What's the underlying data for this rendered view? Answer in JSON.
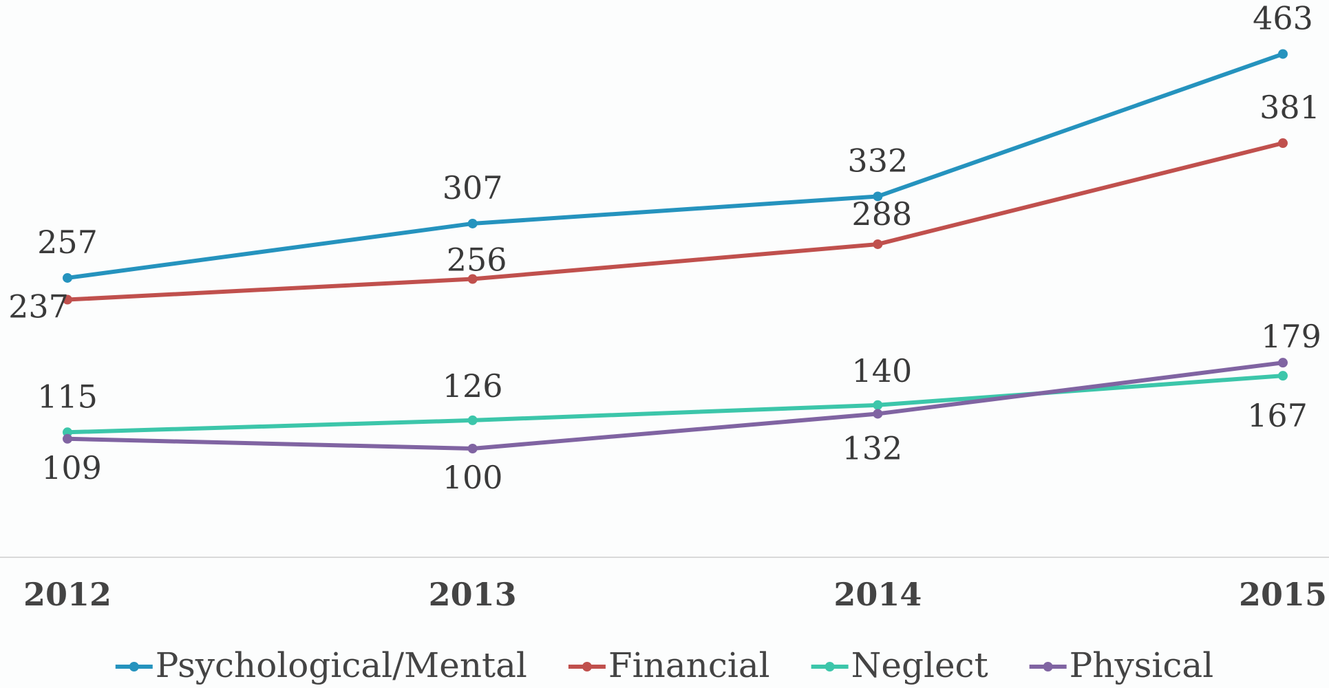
{
  "chart_data": {
    "type": "line",
    "categories": [
      "2012",
      "2013",
      "2014",
      "2015"
    ],
    "series": [
      {
        "name": "Psychological/Mental",
        "color": "#2593be",
        "values": [
          257,
          307,
          332,
          463
        ]
      },
      {
        "name": "Financial",
        "color": "#c0504d",
        "values": [
          237,
          256,
          288,
          381
        ]
      },
      {
        "name": "Neglect",
        "color": "#3cc6aa",
        "values": [
          115,
          126,
          140,
          167
        ]
      },
      {
        "name": "Physical",
        "color": "#8064a2",
        "values": [
          109,
          100,
          132,
          179
        ]
      }
    ],
    "ylim": [
      0,
      500
    ]
  }
}
